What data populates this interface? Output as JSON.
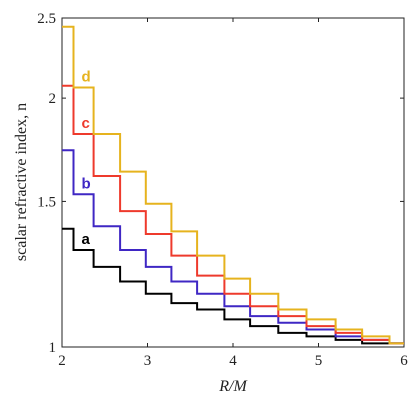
{
  "chart_data": {
    "type": "line",
    "step": true,
    "xlabel": "R/M",
    "ylabel": "scalar refractive index, n",
    "xlim": [
      2,
      6
    ],
    "ylim": [
      1,
      2.5
    ],
    "yscale": "log",
    "x_ticks": [
      "2",
      "3",
      "4",
      "5",
      "6"
    ],
    "y_ticks": [
      "1",
      "1.5",
      "2",
      "2.5"
    ],
    "grid": false,
    "box": true,
    "bin_edges": [
      2,
      2.135,
      2.37,
      2.68,
      2.98,
      3.28,
      3.58,
      3.9,
      4.2,
      4.53,
      4.86,
      5.2,
      5.51,
      5.83,
      6
    ],
    "series": [
      {
        "name": "a",
        "color": "#000000",
        "values": [
          1.39,
          1.31,
          1.25,
          1.2,
          1.16,
          1.13,
          1.11,
          1.08,
          1.06,
          1.04,
          1.03,
          1.02,
          1.01,
          1.01
        ]
      },
      {
        "name": "b",
        "color": "#3f27c4",
        "values": [
          1.73,
          1.53,
          1.4,
          1.31,
          1.25,
          1.2,
          1.16,
          1.12,
          1.09,
          1.07,
          1.05,
          1.03,
          1.02,
          1.01
        ]
      },
      {
        "name": "c",
        "color": "#ee3a2c",
        "values": [
          2.07,
          1.81,
          1.61,
          1.46,
          1.37,
          1.29,
          1.22,
          1.16,
          1.12,
          1.09,
          1.06,
          1.04,
          1.02,
          1.01
        ]
      },
      {
        "name": "d",
        "color": "#e6b31e",
        "values": [
          2.44,
          2.06,
          1.81,
          1.63,
          1.49,
          1.38,
          1.29,
          1.21,
          1.16,
          1.11,
          1.08,
          1.05,
          1.03,
          1.01
        ]
      }
    ]
  }
}
